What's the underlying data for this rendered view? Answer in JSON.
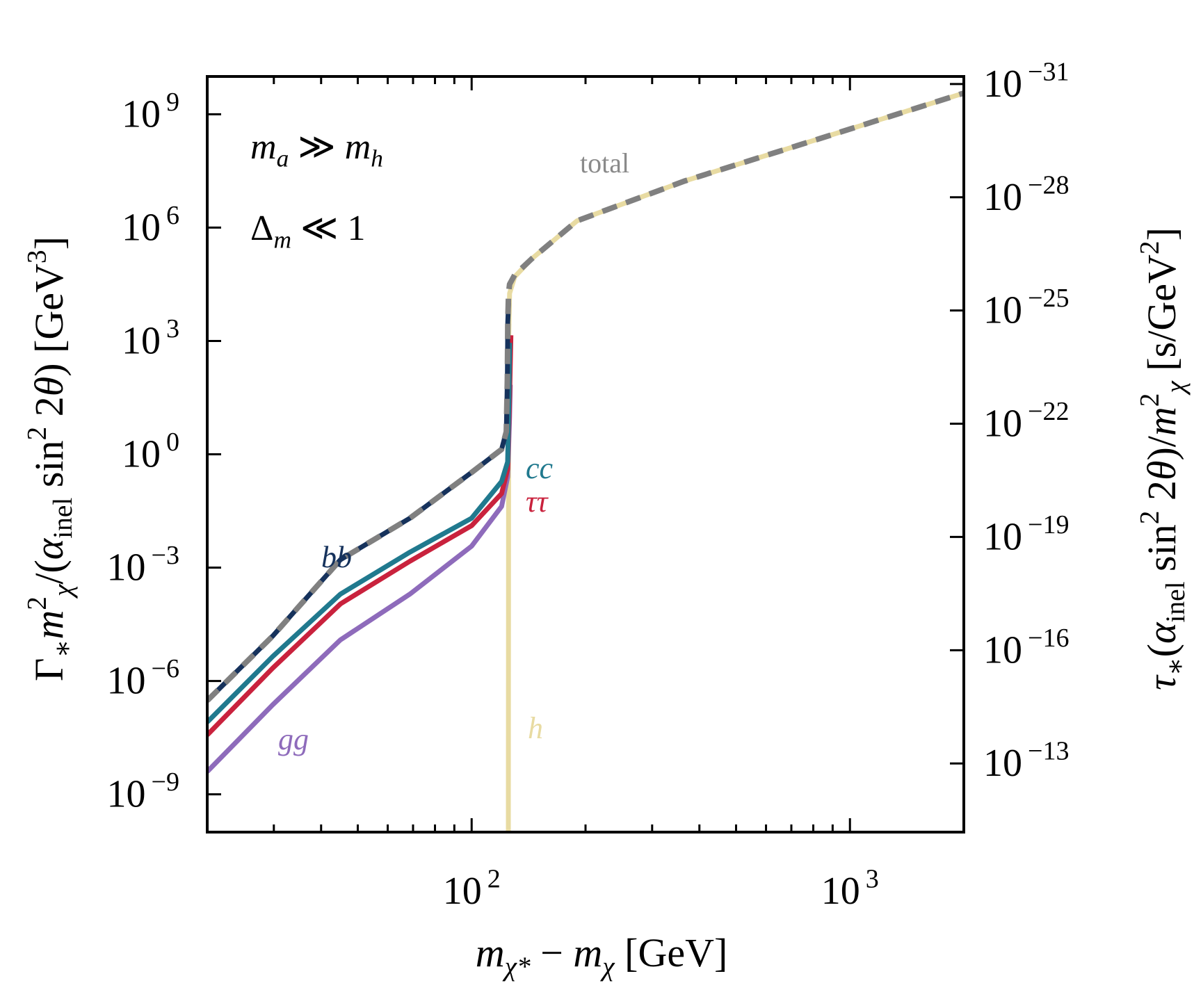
{
  "chart_data": {
    "type": "line",
    "xscale": "log",
    "yscale": "log",
    "xlim": [
      20,
      2000
    ],
    "ylim": [
      1e-10,
      10000000000.0
    ],
    "ylim_right": [
      6.6e-12,
      6.3e-32
    ],
    "grid": false,
    "xlabel": [
      {
        "t": "m",
        "i": true
      },
      {
        "t": "χ*",
        "sub": true,
        "i": true
      },
      {
        "t": " − "
      },
      {
        "t": "m",
        "i": true
      },
      {
        "t": "χ",
        "sub": true,
        "i": true
      },
      {
        "t": " [GeV]"
      }
    ],
    "ylabel": [
      {
        "t": "Γ"
      },
      {
        "t": "∗",
        "sub": true
      },
      {
        "t": "m",
        "i": true
      },
      {
        "t": "2",
        "sup": true
      },
      {
        "t": "χ",
        "sub": true,
        "i": true
      },
      {
        "t": "/("
      },
      {
        "t": "α",
        "i": true
      },
      {
        "t": "inel",
        "sub": true
      },
      {
        "t": " sin"
      },
      {
        "t": "2",
        "sup": true
      },
      {
        "t": " 2"
      },
      {
        "t": "θ",
        "i": true
      },
      {
        "t": ") [GeV"
      },
      {
        "t": "3",
        "sup": true
      },
      {
        "t": "]"
      }
    ],
    "ylabel_right": [
      {
        "t": "τ",
        "i": true
      },
      {
        "t": "∗",
        "sub": true
      },
      {
        "t": "("
      },
      {
        "t": "α",
        "i": true
      },
      {
        "t": "inel",
        "sub": true
      },
      {
        "t": " sin"
      },
      {
        "t": "2",
        "sup": true
      },
      {
        "t": " 2"
      },
      {
        "t": "θ",
        "i": true
      },
      {
        "t": ")/"
      },
      {
        "t": "m",
        "i": true
      },
      {
        "t": "2",
        "sup": true
      },
      {
        "t": "χ",
        "sub": true,
        "i": true
      },
      {
        "t": " [s/GeV"
      },
      {
        "t": "2",
        "sup": true
      },
      {
        "t": "]"
      }
    ],
    "xticks": [
      {
        "base": "10",
        "exp": "2",
        "value": 100
      },
      {
        "base": "10",
        "exp": "3",
        "value": 1000
      }
    ],
    "yticks": [
      {
        "base": "10",
        "exp": "9",
        "value": 1000000000.0
      },
      {
        "base": "10",
        "exp": "6",
        "value": 1000000.0
      },
      {
        "base": "10",
        "exp": "3",
        "value": 1000.0
      },
      {
        "base": "10",
        "exp": "0",
        "value": 1
      },
      {
        "base": "10",
        "exp": "−3",
        "value": 0.001
      },
      {
        "base": "10",
        "exp": "−6",
        "value": 1e-06
      },
      {
        "base": "10",
        "exp": "−9",
        "value": 1e-09
      }
    ],
    "yticks_right": [
      {
        "base": "10",
        "exp": "−31",
        "value": 1e-31
      },
      {
        "base": "10",
        "exp": "−28",
        "value": 1e-28
      },
      {
        "base": "10",
        "exp": "−25",
        "value": 1e-25
      },
      {
        "base": "10",
        "exp": "−22",
        "value": 1e-22
      },
      {
        "base": "10",
        "exp": "−19",
        "value": 1e-19
      },
      {
        "base": "10",
        "exp": "−16",
        "value": 1e-16
      },
      {
        "base": "10",
        "exp": "−13",
        "value": 1e-13
      }
    ],
    "annotations": [
      {
        "parts": [
          {
            "t": "m",
            "i": true
          },
          {
            "t": "a",
            "sub": true,
            "i": true
          },
          {
            "t": " ≫ "
          },
          {
            "t": "m",
            "i": true
          },
          {
            "t": "h",
            "sub": true,
            "i": true
          }
        ]
      },
      {
        "parts": [
          {
            "t": "Δ"
          },
          {
            "t": "m",
            "sub": true,
            "i": true
          },
          {
            "t": " ≪ 1"
          }
        ]
      }
    ],
    "series": [
      {
        "name": "h",
        "color": "#e8dba2",
        "dashed": false,
        "x": [
          125,
          125.3,
          126,
          130,
          144,
          190,
          365,
          925,
          2000
        ],
        "logy": [
          -10.5,
          3.0,
          4.26,
          4.7,
          5.17,
          6.18,
          7.23,
          8.5,
          9.56
        ]
      },
      {
        "name": "gg",
        "color": "#8e6bbb",
        "dashed": false,
        "x": [
          20,
          29.8,
          45,
          68.7,
          100,
          120,
          124.5,
          126,
          126.5
        ],
        "logy": [
          -8.4,
          -6.63,
          -4.91,
          -3.7,
          -2.43,
          -1.38,
          -0.6,
          1.0,
          1.84
        ]
      },
      {
        "name": "ττ",
        "color": "#c9223d",
        "dashed": false,
        "x": [
          20,
          29.8,
          45,
          68.7,
          100,
          120,
          124.5,
          126,
          127
        ],
        "logy": [
          -7.43,
          -5.66,
          -3.96,
          -2.83,
          -1.89,
          -1.04,
          -0.4,
          1.5,
          3.15
        ]
      },
      {
        "name": "cc",
        "color": "#20798e",
        "dashed": false,
        "x": [
          20,
          29.8,
          45,
          68.7,
          100,
          120,
          124.5,
          125.5,
          126
        ],
        "logy": [
          -7.09,
          -5.35,
          -3.7,
          -2.59,
          -1.69,
          -0.72,
          -0.2,
          1.5,
          2.95
        ]
      },
      {
        "name": "bb",
        "color": "#16325c",
        "dashed": false,
        "x": [
          20,
          29.8,
          45,
          68.7,
          100,
          120,
          123.5,
          124.3,
          124.6,
          125.2
        ],
        "logy": [
          -6.52,
          -4.81,
          -2.79,
          -1.69,
          -0.48,
          0.13,
          0.6,
          2.0,
          3.5,
          4.0
        ]
      },
      {
        "name": "total",
        "color": "#808080",
        "dashed": true,
        "x": [
          20,
          29.8,
          45,
          68.7,
          100,
          120,
          123.5,
          124.3,
          124.6,
          125.2,
          126,
          130,
          144,
          190,
          365,
          925,
          2000
        ],
        "logy": [
          -6.52,
          -4.81,
          -2.79,
          -1.69,
          -0.48,
          0.13,
          0.6,
          2.0,
          3.5,
          4.26,
          4.5,
          4.75,
          5.17,
          6.18,
          7.23,
          8.5,
          9.56
        ]
      }
    ],
    "labels": [
      {
        "text": "total",
        "color": "#8a8a8a"
      },
      {
        "text": "bb",
        "color": "#16325c"
      },
      {
        "text": "cc",
        "color": "#20798e"
      },
      {
        "text": "ττ",
        "color": "#c9223d"
      },
      {
        "text": "gg",
        "color": "#8e6bbb"
      },
      {
        "text": "h",
        "color": "#e8dba2"
      }
    ]
  }
}
